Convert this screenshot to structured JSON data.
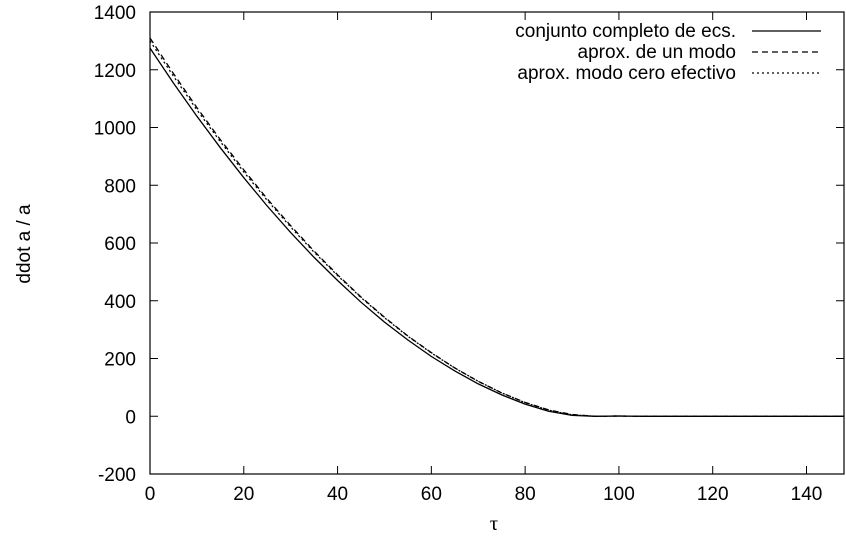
{
  "chart_data": {
    "type": "line",
    "xlabel": "τ",
    "ylabel": "ddot a / a",
    "xlim": [
      0,
      148
    ],
    "ylim": [
      -200,
      1400
    ],
    "xticks": [
      0,
      20,
      40,
      60,
      80,
      100,
      120,
      140
    ],
    "xtick_labels": [
      "0",
      "20",
      "40",
      "60",
      "80",
      "100",
      "120",
      "140"
    ],
    "yticks": [
      -200,
      0,
      200,
      400,
      600,
      800,
      1000,
      1200,
      1400
    ],
    "ytick_labels": [
      "-200",
      "0",
      "200",
      "400",
      "600",
      "800",
      "1000",
      "1200",
      "1400"
    ],
    "grid": false,
    "legend_position": "top-right",
    "series": [
      {
        "name": "conjunto completo de ecs.",
        "style": "solid",
        "x": [
          0,
          5,
          10,
          15,
          20,
          25,
          30,
          35,
          40,
          45,
          50,
          55,
          60,
          65,
          70,
          75,
          80,
          85,
          90,
          95,
          100,
          105,
          110,
          115,
          120,
          125,
          130,
          135,
          140,
          148
        ],
        "y": [
          1275,
          1154,
          1039,
          930,
          826,
          728,
          636,
          550,
          470,
          395,
          326,
          264,
          207,
          157,
          112,
          74,
          42,
          17,
          3,
          0,
          1,
          0,
          0,
          0,
          0,
          0,
          0,
          0,
          0,
          0
        ]
      },
      {
        "name": "aprox. de un modo",
        "style": "dashed",
        "x": [
          0,
          5,
          10,
          15,
          20,
          25,
          30,
          35,
          40,
          45,
          50,
          55,
          60,
          65,
          70,
          75,
          80,
          85,
          90,
          95,
          100,
          105,
          110,
          115,
          120,
          125,
          130,
          135,
          140,
          148
        ],
        "y": [
          1310,
          1187,
          1069,
          958,
          853,
          753,
          660,
          572,
          490,
          413,
          343,
          278,
          220,
          167,
          121,
          81,
          48,
          22,
          6,
          0,
          1,
          0,
          0,
          0,
          0,
          0,
          0,
          0,
          0,
          0
        ]
      },
      {
        "name": "aprox. modo cero efectivo",
        "style": "dotted",
        "x": [
          0,
          5,
          10,
          15,
          20,
          25,
          30,
          35,
          40,
          45,
          50,
          55,
          60,
          65,
          70,
          75,
          80,
          85,
          90,
          95,
          100,
          105,
          110,
          115,
          120,
          125,
          130,
          135,
          140,
          148
        ],
        "y": [
          1300,
          1178,
          1061,
          951,
          846,
          748,
          655,
          568,
          487,
          411,
          341,
          277,
          219,
          167,
          121,
          81,
          47,
          21,
          5,
          0,
          1,
          0,
          0,
          0,
          0,
          0,
          0,
          0,
          0,
          0
        ]
      }
    ]
  }
}
